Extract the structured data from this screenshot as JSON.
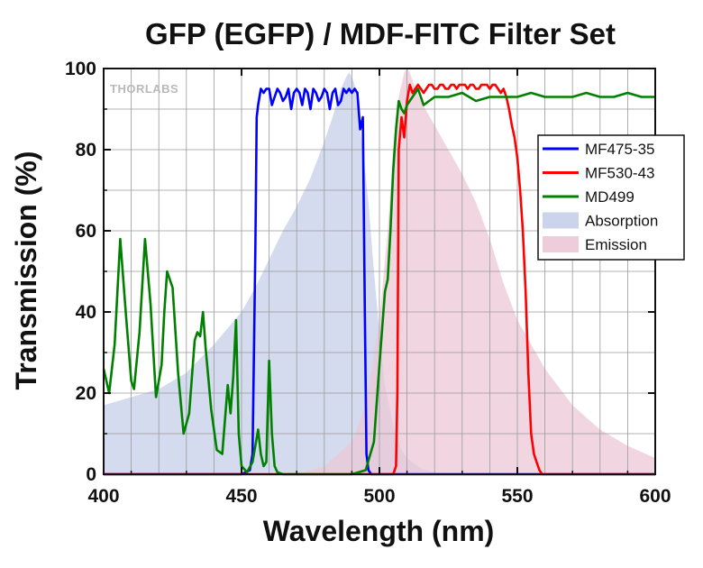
{
  "chart_data": {
    "type": "line",
    "title": "GFP (EGFP) / MDF-FITC Filter Set",
    "xlabel": "Wavelength (nm)",
    "ylabel": "Transmission (%)",
    "xlim": [
      400,
      600
    ],
    "ylim": [
      0,
      100
    ],
    "xticks": [
      "400",
      "450",
      "500",
      "550",
      "600"
    ],
    "yticks": [
      "0",
      "20",
      "40",
      "60",
      "80",
      "100"
    ],
    "grid": true,
    "legend_position": "right",
    "watermark": "THORLABS",
    "series": [
      {
        "name": "MF475-35",
        "kind": "line",
        "color": "#0000ff",
        "x": [
          400,
          450,
          453,
          454,
          455,
          455.5,
          456,
          457,
          458,
          459,
          460,
          461,
          462,
          463,
          464,
          465,
          466,
          467,
          468,
          469,
          470,
          471,
          472,
          473,
          474,
          475,
          476,
          477,
          478,
          479,
          480,
          481,
          482,
          483,
          484,
          485,
          486,
          487,
          488,
          489,
          490,
          491,
          492,
          493,
          494,
          494.7,
          495.3,
          496,
          497,
          600
        ],
        "values": [
          0,
          0,
          1,
          5,
          55,
          88,
          91,
          95,
          94,
          95,
          95,
          91,
          93,
          95,
          94,
          92,
          93,
          95,
          90,
          94,
          95,
          94,
          91,
          95,
          94,
          90,
          95,
          94,
          92,
          93,
          95,
          94,
          90,
          94,
          95,
          91,
          92,
          95,
          94,
          95,
          94,
          95,
          94,
          85,
          88,
          40,
          5,
          1,
          0,
          0
        ]
      },
      {
        "name": "MF530-43",
        "kind": "line",
        "color": "#ff0000",
        "x": [
          400,
          505,
          506,
          506.5,
          507,
          508,
          509,
          510,
          511,
          512,
          513,
          514,
          515,
          516,
          517,
          518,
          519,
          520,
          521,
          522,
          523,
          524,
          525,
          526,
          527,
          528,
          529,
          530,
          531,
          532,
          533,
          534,
          535,
          536,
          537,
          538,
          539,
          540,
          541,
          542,
          543,
          544,
          545,
          546,
          547,
          548,
          549,
          550,
          551,
          552,
          553,
          554,
          555,
          556,
          557,
          558,
          559,
          560,
          600
        ],
        "values": [
          0,
          0,
          2,
          20,
          80,
          88,
          83,
          92,
          96,
          94,
          95,
          96,
          95,
          94,
          95,
          96,
          96,
          95,
          95,
          96,
          96,
          95,
          95,
          96,
          96,
          95,
          96,
          96,
          96,
          95,
          96,
          96,
          95,
          95,
          96,
          96,
          96,
          95,
          96,
          96,
          95,
          94,
          95,
          93,
          90,
          86,
          83,
          78,
          70,
          60,
          45,
          25,
          10,
          5,
          3,
          1,
          0,
          0,
          0
        ]
      },
      {
        "name": "MD499",
        "kind": "line",
        "color": "#008000",
        "x": [
          400,
          402,
          404,
          406,
          408,
          410,
          411,
          413,
          415,
          417,
          419,
          421,
          422,
          423,
          424,
          425,
          427,
          429,
          431,
          433,
          434,
          435,
          436,
          437,
          439,
          441,
          443,
          445,
          446,
          447,
          448,
          449,
          450,
          452,
          454,
          456,
          457,
          458,
          459,
          460,
          461,
          462,
          463,
          465,
          470,
          480,
          490,
          495,
          498,
          500,
          502,
          503,
          504,
          505,
          506,
          507,
          508,
          509,
          510,
          512,
          514,
          516,
          518,
          520,
          525,
          530,
          535,
          540,
          545,
          550,
          555,
          560,
          565,
          570,
          575,
          580,
          585,
          590,
          595,
          600
        ],
        "values": [
          26,
          20,
          32,
          58,
          40,
          23,
          21,
          35,
          58,
          42,
          19,
          27,
          40,
          50,
          48,
          46,
          25,
          10,
          15,
          33,
          35,
          34,
          40,
          31,
          16,
          6,
          5,
          22,
          15,
          24,
          38,
          10,
          2,
          0.5,
          3,
          11,
          5,
          2,
          3,
          28,
          10,
          2,
          0.5,
          0,
          0,
          0,
          0,
          1,
          8,
          27,
          45,
          48,
          60,
          75,
          85,
          92,
          90,
          89,
          91,
          93,
          95,
          91,
          92,
          93,
          93,
          94,
          92,
          93,
          93,
          93,
          94,
          93,
          93,
          93,
          94,
          93,
          93,
          94,
          93,
          93
        ]
      },
      {
        "name": "Absorption",
        "kind": "area",
        "color": "#c5cfe8",
        "x": [
          400,
          410,
          420,
          430,
          440,
          450,
          455,
          460,
          465,
          470,
          475,
          480,
          483,
          486,
          488,
          489,
          490,
          491,
          492,
          494,
          496,
          498,
          500,
          502,
          505,
          508,
          510,
          515,
          520,
          530,
          540,
          600
        ],
        "values": [
          17,
          19,
          21,
          25,
          32,
          40,
          46,
          53,
          60,
          66,
          73,
          82,
          88,
          95,
          98,
          99,
          98,
          96,
          90,
          80,
          67,
          50,
          35,
          22,
          12,
          6,
          4,
          1.5,
          0.5,
          0,
          0,
          0
        ]
      },
      {
        "name": "Emission",
        "kind": "area",
        "color": "#ecc8d7",
        "x": [
          400,
          470,
          480,
          490,
          495,
          500,
          503,
          505,
          507,
          509,
          510,
          511,
          512,
          515,
          520,
          525,
          530,
          535,
          540,
          545,
          550,
          560,
          570,
          580,
          590,
          600
        ],
        "values": [
          0,
          0,
          2,
          8,
          17,
          38,
          60,
          80,
          93,
          99,
          100,
          99,
          97,
          92,
          86,
          80,
          74,
          67,
          58,
          47,
          38,
          26,
          17,
          11,
          7,
          4
        ]
      }
    ]
  }
}
